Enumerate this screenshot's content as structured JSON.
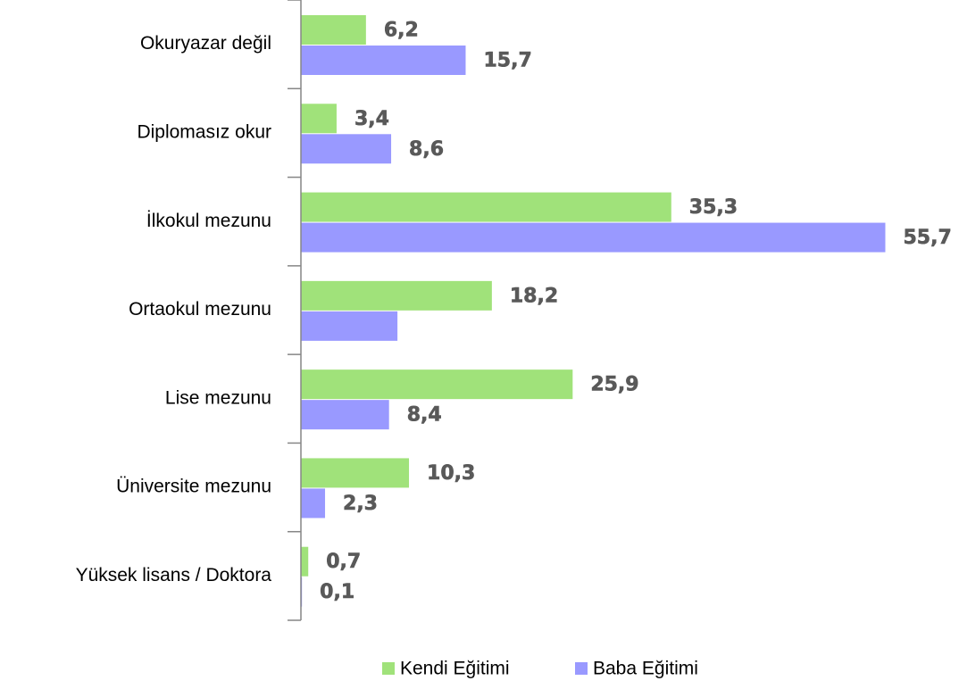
{
  "chart_data": {
    "type": "hbar",
    "categories": [
      "Okuryazar değil",
      "Diplomasız okur",
      "İlkokul mezunu",
      "Ortaokul mezunu",
      "Lise mezunu",
      "Üniversite mezunu",
      "Yüksek lisans / Doktora"
    ],
    "series": [
      {
        "name": "Kendi Eğitimi",
        "color": "#a0e27a",
        "values": [
          6.2,
          3.4,
          35.3,
          18.2,
          25.9,
          10.3,
          0.7
        ],
        "value_labels": [
          "6,2",
          "3,4",
          "35,3",
          "18,2",
          "25,9",
          "10,3",
          "0,7"
        ]
      },
      {
        "name": "Baba Eğitimi",
        "color": "#9999ff",
        "values": [
          15.7,
          8.6,
          55.7,
          9.2,
          8.4,
          2.3,
          0.1
        ],
        "value_labels": [
          "15,7",
          "8,6",
          "55,7",
          null,
          "8,4",
          "2,3",
          "0,1"
        ]
      }
    ],
    "xlim": [
      0,
      56
    ]
  }
}
